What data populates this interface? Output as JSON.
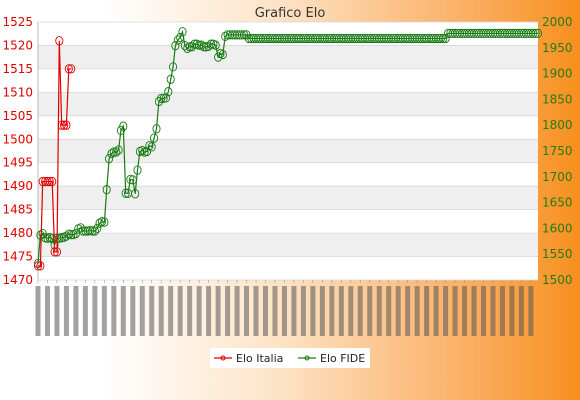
{
  "chart_data": {
    "type": "line",
    "title": "Grafico Elo",
    "grid": true,
    "legend_position": "bottom",
    "x_tick_labels_description": "dense rotated date labels, illegible",
    "y_left": {
      "ticks": [
        "1470",
        "1475",
        "1480",
        "1485",
        "1490",
        "1495",
        "1500",
        "1505",
        "1510",
        "1515",
        "1520",
        "1525"
      ],
      "ylim": [
        1470,
        1525
      ]
    },
    "y_right": {
      "ticks": [
        "1500",
        "1550",
        "1600",
        "1650",
        "1700",
        "1750",
        "1800",
        "1850",
        "1900",
        "1950",
        "2000"
      ],
      "ylim": [
        1500,
        2000
      ]
    },
    "series": [
      {
        "name": "Elo Italia",
        "color": "#e00000",
        "axis": "left",
        "values": [
          1473,
          1473,
          1491,
          1491,
          1491,
          1491,
          1491,
          1476,
          1476,
          1521,
          1503,
          1503,
          1503,
          1515,
          1515
        ]
      },
      {
        "name": "Elo FIDE",
        "color": "#1a7a14",
        "axis": "right",
        "values": [
          1532,
          1587,
          1590,
          1582,
          1581,
          1582,
          1580,
          1568,
          1581,
          1581,
          1582,
          1583,
          1585,
          1589,
          1588,
          1588,
          1590,
          1599,
          1601,
          1595,
          1595,
          1595,
          1596,
          1595,
          1595,
          1600,
          1610,
          1613,
          1612,
          1675,
          1735,
          1745,
          1748,
          1748,
          1752,
          1790,
          1798,
          1668,
          1668,
          1695,
          1694,
          1667,
          1713,
          1749,
          1751,
          1748,
          1749,
          1760,
          1758,
          1775,
          1793,
          1846,
          1852,
          1852,
          1853,
          1865,
          1889,
          1913,
          1954,
          1965,
          1970,
          1981,
          1954,
          1949,
          1952,
          1952,
          1957,
          1957,
          1955,
          1955,
          1952,
          1952,
          1953,
          1957,
          1957,
          1955,
          1932,
          1939,
          1937,
          1972,
          1975,
          1975,
          1975,
          1975,
          1975,
          1975,
          1975,
          1975,
          1975,
          1968,
          1968,
          1968,
          1968,
          1968,
          1968,
          1968,
          1968,
          1968,
          1968,
          1968,
          1968,
          1968,
          1968,
          1968,
          1968,
          1968,
          1968,
          1968,
          1968,
          1968,
          1968,
          1968,
          1968,
          1968,
          1968,
          1968,
          1968,
          1968,
          1968,
          1968,
          1968,
          1968,
          1968,
          1968,
          1968,
          1968,
          1968,
          1968,
          1968,
          1968,
          1968,
          1968,
          1968,
          1968,
          1968,
          1968,
          1968,
          1968,
          1968,
          1968,
          1968,
          1968,
          1968,
          1968,
          1968,
          1968,
          1968,
          1968,
          1968,
          1968,
          1968,
          1968,
          1968,
          1968,
          1968,
          1968,
          1968,
          1968,
          1968,
          1968,
          1968,
          1968,
          1968,
          1968,
          1968,
          1968,
          1968,
          1968,
          1968,
          1968,
          1968,
          1968,
          1968,
          1978,
          1978,
          1978,
          1978,
          1978,
          1978,
          1978,
          1978,
          1978,
          1978,
          1978,
          1978,
          1978,
          1978,
          1978,
          1978,
          1978,
          1978,
          1978,
          1978,
          1978,
          1978,
          1978,
          1978,
          1978,
          1978,
          1978,
          1978,
          1978,
          1978,
          1978,
          1978,
          1978,
          1978,
          1978,
          1978,
          1978,
          1978,
          1978
        ]
      }
    ]
  }
}
